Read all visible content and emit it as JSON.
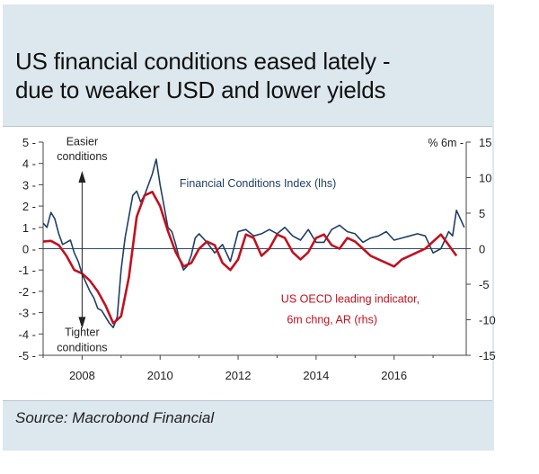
{
  "title_lines": [
    "US financial conditions eased lately -",
    "due to weaker USD and lower yields"
  ],
  "source": "Source: Macrobond Financial",
  "chart_data": {
    "type": "line",
    "title": "US financial conditions eased lately - due to weaker USD and lower yields",
    "x_range": [
      2007.0,
      2017.85
    ],
    "x_ticks": [
      2008,
      2010,
      2012,
      2014,
      2016
    ],
    "x_tick_labels": [
      "2008",
      "2010",
      "2012",
      "2014",
      "2016"
    ],
    "y_left": {
      "range": [
        -5,
        5
      ],
      "ticks": [
        5,
        4,
        3,
        2,
        1,
        0,
        -1,
        -2,
        -3,
        -4,
        -5
      ],
      "tick_labels": [
        "5",
        "4",
        "3",
        "2",
        "1",
        "0",
        "-1",
        "-2",
        "-3",
        "-4",
        "-5"
      ]
    },
    "y_right": {
      "range": [
        -15,
        15
      ],
      "ticks": [
        15,
        10,
        5,
        0,
        -5,
        -10,
        -15
      ],
      "tick_labels": [
        "15",
        "10",
        "5",
        "0",
        "-5",
        "-10",
        "-15"
      ],
      "unit_label": "% 6m"
    },
    "annotations": {
      "easier": [
        "Easier",
        "conditions"
      ],
      "tighter": [
        "Tighter",
        "conditions"
      ],
      "annotation_x": 2008.0
    },
    "series": [
      {
        "name": "Financial Conditions Index (lhs)",
        "label": "Financial Conditions Index (lhs)",
        "axis": "left",
        "color": "#1e3f66",
        "x": [
          2007.0,
          2007.1,
          2007.2,
          2007.3,
          2007.4,
          2007.5,
          2007.6,
          2007.7,
          2007.8,
          2007.9,
          2008.0,
          2008.1,
          2008.2,
          2008.3,
          2008.4,
          2008.5,
          2008.6,
          2008.7,
          2008.8,
          2008.9,
          2009.0,
          2009.1,
          2009.2,
          2009.3,
          2009.4,
          2009.5,
          2009.6,
          2009.7,
          2009.8,
          2009.9,
          2010.0,
          2010.1,
          2010.2,
          2010.3,
          2010.4,
          2010.5,
          2010.6,
          2010.7,
          2010.8,
          2010.9,
          2011.0,
          2011.2,
          2011.4,
          2011.6,
          2011.8,
          2012.0,
          2012.2,
          2012.4,
          2012.6,
          2012.8,
          2013.0,
          2013.2,
          2013.4,
          2013.6,
          2013.8,
          2014.0,
          2014.2,
          2014.4,
          2014.6,
          2014.8,
          2015.0,
          2015.2,
          2015.4,
          2015.6,
          2015.8,
          2016.0,
          2016.2,
          2016.4,
          2016.6,
          2016.8,
          2017.0,
          2017.2,
          2017.4,
          2017.5,
          2017.6,
          2017.7,
          2017.8
        ],
        "values": [
          1.2,
          1.0,
          1.7,
          1.4,
          0.7,
          0.2,
          0.3,
          0.4,
          -0.2,
          -0.6,
          -1.2,
          -1.6,
          -2.0,
          -2.3,
          -2.8,
          -2.9,
          -3.2,
          -3.5,
          -3.7,
          -3.2,
          -1.0,
          0.5,
          1.5,
          2.5,
          2.7,
          2.2,
          2.5,
          3.0,
          3.5,
          4.2,
          3.0,
          2.0,
          1.0,
          0.8,
          0.2,
          -0.5,
          -1.0,
          -0.8,
          -0.3,
          0.5,
          0.7,
          0.3,
          -0.2,
          0.2,
          -0.6,
          0.8,
          0.9,
          0.6,
          0.7,
          0.9,
          0.7,
          1.0,
          0.6,
          0.4,
          0.9,
          0.3,
          0.3,
          0.9,
          1.1,
          0.8,
          0.7,
          0.3,
          0.5,
          0.6,
          0.8,
          0.4,
          0.5,
          0.6,
          0.7,
          0.6,
          -0.2,
          0.0,
          0.8,
          0.6,
          1.8,
          1.4,
          1.0
        ]
      },
      {
        "name": "US OECD leading indicator, 6m chng, AR (rhs)",
        "label_lines": [
          "US OECD leading indicator,",
          "6m chng, AR (rhs)"
        ],
        "axis": "right",
        "color": "#c0111f",
        "x": [
          2007.0,
          2007.2,
          2007.4,
          2007.6,
          2007.8,
          2008.0,
          2008.2,
          2008.4,
          2008.6,
          2008.8,
          2009.0,
          2009.2,
          2009.4,
          2009.6,
          2009.8,
          2010.0,
          2010.2,
          2010.4,
          2010.6,
          2010.8,
          2011.0,
          2011.2,
          2011.4,
          2011.6,
          2011.8,
          2012.0,
          2012.2,
          2012.4,
          2012.6,
          2012.8,
          2013.0,
          2013.2,
          2013.4,
          2013.6,
          2013.8,
          2014.0,
          2014.2,
          2014.4,
          2014.6,
          2014.8,
          2015.0,
          2015.2,
          2015.4,
          2015.6,
          2015.8,
          2016.0,
          2016.2,
          2016.4,
          2016.6,
          2016.8,
          2017.0,
          2017.2,
          2017.4,
          2017.6
        ],
        "values": [
          1.0,
          1.1,
          0.5,
          -1.0,
          -3.0,
          -3.5,
          -4.5,
          -6.0,
          -8.0,
          -10.5,
          -9.5,
          -4.0,
          4.5,
          7.5,
          8.0,
          6.0,
          2.5,
          -0.5,
          -2.5,
          -2.0,
          0.0,
          1.0,
          0.5,
          -2.0,
          -3.0,
          -1.5,
          2.0,
          1.5,
          -1.0,
          0.0,
          2.0,
          1.5,
          -0.5,
          -1.5,
          -0.5,
          1.5,
          2.0,
          0.5,
          0.0,
          1.5,
          1.0,
          0.0,
          -1.0,
          -1.5,
          -2.0,
          -2.5,
          -1.5,
          -1.0,
          -0.5,
          0.0,
          1.0,
          2.0,
          0.5,
          -1.0
        ]
      }
    ]
  }
}
